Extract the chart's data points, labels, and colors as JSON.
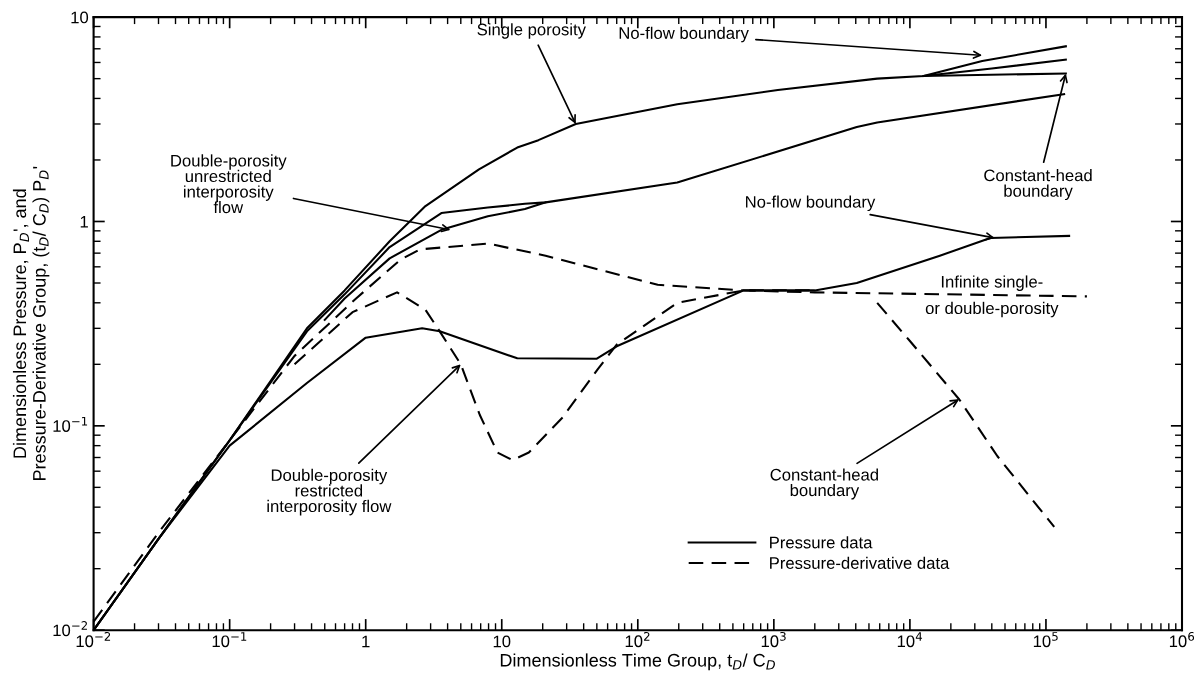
{
  "chart_data": {
    "type": "line",
    "xlabel": "Dimensionless Time Group, t$_{D}$/ C$_{D}$",
    "ylabel": "Dimensionless Pressure, P$_{D}$', and\nPressure-Derivative Group, (t$_{D}$/ C$_{D}$) P$_{D}$'",
    "log": "xy",
    "grid": false,
    "legend": "bottom right",
    "xlim": [
      0.01,
      1000000
    ],
    "ylim": [
      0.01,
      10
    ],
    "xticks": [
      {
        "value": 0.01,
        "label": "10$^{−2}$"
      },
      {
        "value": 0.1,
        "label": "10$^{−1}$"
      },
      1,
      10,
      {
        "value": 100,
        "label": "10$^{2}$"
      },
      {
        "value": 1000,
        "label": "10$^{3}$"
      },
      {
        "value": 10000,
        "label": "10$^{4}$"
      },
      {
        "value": 100000,
        "label": "10$^{5}$"
      },
      {
        "value": 1000000,
        "label": "10$^{6}$"
      }
    ],
    "yticks": [
      {
        "value": 0.01,
        "label": "10$^{−2}$"
      },
      {
        "value": 0.1,
        "label": "10$^{−1}$"
      },
      1,
      10
    ],
    "series": [
      {
        "name": "Pressure data",
        "color": "#000000",
        "line_style": "solid",
        "x": [
          0.01,
          0.03,
          0.1,
          0.37,
          0.7,
          1.5,
          2.75,
          6.8,
          13,
          18.6,
          35,
          195,
          1070,
          5750,
          12600,
          40000,
          140000
        ],
        "values": [
          0.01,
          0.028,
          0.085,
          0.3,
          0.46,
          0.8,
          1.19,
          1.8,
          2.3,
          2.5,
          3.0,
          3.75,
          4.4,
          5.0,
          5.15,
          5.6,
          6.2
        ]
      },
      {
        "color": "#000000",
        "line_style": "solid",
        "x": [
          12600,
          34000,
          140000
        ],
        "values": [
          5.15,
          6.1,
          7.2
        ]
      },
      {
        "color": "#000000",
        "line_style": "solid",
        "x": [
          12600,
          140000
        ],
        "values": [
          5.15,
          5.3
        ]
      },
      {
        "color": "#000000",
        "line_style": "solid",
        "x": [
          0.01,
          0.03,
          0.1,
          0.37,
          0.7,
          1.5,
          3.6,
          7.9,
          14.8,
          21,
          195,
          4070,
          5750,
          136000
        ],
        "values": [
          0.01,
          0.028,
          0.085,
          0.29,
          0.44,
          0.75,
          1.1,
          1.17,
          1.22,
          1.24,
          1.55,
          2.9,
          3.05,
          4.2
        ]
      },
      {
        "color": "#000000",
        "line_style": "solid",
        "x": [
          0.5,
          0.7,
          1.5,
          3.6,
          7.9,
          14.8,
          21
        ],
        "values": [
          0.33,
          0.42,
          0.66,
          0.91,
          1.06,
          1.15,
          1.24
        ]
      },
      {
        "color": "#000000",
        "line_style": "solid",
        "x": [
          0.01,
          0.03,
          0.1,
          0.37,
          1,
          2.6,
          3.5,
          13,
          50,
          70,
          600,
          2000,
          4070,
          16600,
          39000,
          148000
        ],
        "values": [
          0.01,
          0.028,
          0.08,
          0.162,
          0.27,
          0.3,
          0.29,
          0.214,
          0.213,
          0.245,
          0.46,
          0.46,
          0.5,
          0.68,
          0.83,
          0.85
        ]
      },
      {
        "name": "Pressure-derivative data",
        "color": "#000000",
        "line_style": "dashed",
        "x": [
          0.01,
          0.03,
          0.1,
          0.3,
          0.85,
          1.8,
          2.5,
          7.9,
          21,
          140,
          600,
          2000,
          200000
        ],
        "values": [
          0.011,
          0.03,
          0.085,
          0.22,
          0.42,
          0.65,
          0.73,
          0.78,
          0.68,
          0.49,
          0.46,
          0.45,
          0.43
        ]
      },
      {
        "color": "#000000",
        "line_style": "dashed",
        "x": [
          0.3,
          0.8,
          1.7,
          2.75,
          3.5,
          5,
          6.9,
          9.3,
          12,
          15.8,
          28,
          51,
          70,
          195,
          600,
          2100
        ],
        "values": [
          0.2,
          0.36,
          0.45,
          0.37,
          0.29,
          0.2,
          0.113,
          0.074,
          0.068,
          0.074,
          0.11,
          0.19,
          0.25,
          0.4,
          0.46,
          0.46
        ]
      },
      {
        "color": "#000000",
        "line_style": "dashed",
        "x": [
          5750,
          10000,
          23000,
          44000,
          115000
        ],
        "values": [
          0.4,
          0.26,
          0.135,
          0.071,
          0.032
        ]
      }
    ],
    "annotations": [
      {
        "text": "Single porosity",
        "x": 35,
        "y": 3.0
      },
      {
        "text": "No-flow boundary",
        "x": 34000,
        "y": 6.5
      },
      {
        "text": "Constant-head\nboundary",
        "x": 140000,
        "y": 5.3
      },
      {
        "text": "No-flow boundary",
        "x": 42000,
        "y": 0.83
      },
      {
        "text": "Infinite single-\nor double-porosity",
        "x": 40000,
        "y": 0.43
      },
      {
        "text": "Double-porosity\nunrestricted\ninterporosity\nflow",
        "x": 4.2,
        "y": 0.91
      },
      {
        "text": "Double-porosity\nrestricted\ninterporosity flow",
        "x": 5,
        "y": 0.2
      },
      {
        "text": "Constant-head\nboundary",
        "x": 23000,
        "y": 0.135
      }
    ]
  }
}
